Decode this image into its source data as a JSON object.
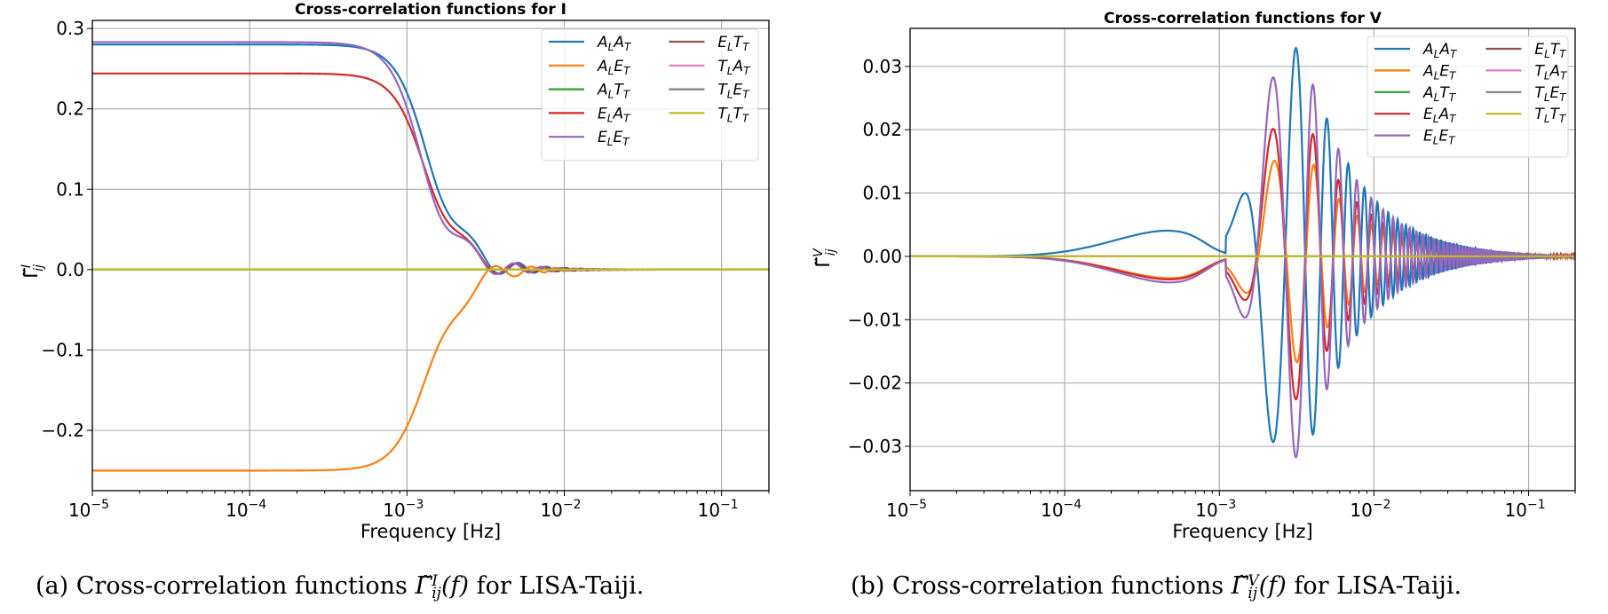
{
  "chart_data": [
    {
      "id": "panel-a",
      "type": "line",
      "title": "Cross-correlation functions for I",
      "xlabel": "Frequency [Hz]",
      "ylabel": "Γ̃ij^I",
      "ylabel_base": "Γ̃",
      "ylabel_sup": "I",
      "ylabel_sub": "ij",
      "xscale": "log",
      "xlim": [
        1e-05,
        0.2
      ],
      "ylim": [
        -0.275,
        0.31
      ],
      "xticks": [
        1e-05,
        0.0001,
        0.001,
        0.01,
        0.1
      ],
      "xtick_labels": [
        {
          "base": "10",
          "exp": "−5"
        },
        {
          "base": "10",
          "exp": "−4"
        },
        {
          "base": "10",
          "exp": "−3"
        },
        {
          "base": "10",
          "exp": "−2"
        },
        {
          "base": "10",
          "exp": "−1"
        }
      ],
      "yticks": [
        -0.2,
        -0.1,
        0.0,
        0.1,
        0.2,
        0.3
      ],
      "ytick_labels": [
        "−0.2",
        "−0.1",
        "0.0",
        "0.1",
        "0.2",
        "0.3"
      ],
      "grid": true,
      "legend_position": "top-right",
      "legend_columns": 2,
      "series": [
        {
          "name": "A_L A_T",
          "label_main": [
            "A",
            "A"
          ],
          "label_sub": [
            "L",
            "T"
          ],
          "color": "#1f77b4",
          "kind": "lowpass",
          "amp": 0.28,
          "fc": 0.00142,
          "phase": 0.0
        },
        {
          "name": "A_L E_T",
          "label_main": [
            "A",
            "E"
          ],
          "label_sub": [
            "L",
            "T"
          ],
          "color": "#ff7f0e",
          "kind": "lowpass",
          "amp": -0.25,
          "fc": 0.00142,
          "phase": 0.6
        },
        {
          "name": "A_L T_T",
          "label_main": [
            "A",
            "T"
          ],
          "label_sub": [
            "L",
            "T"
          ],
          "color": "#2ca02c",
          "kind": "zero"
        },
        {
          "name": "E_L A_T",
          "label_main": [
            "E",
            "A"
          ],
          "label_sub": [
            "L",
            "T"
          ],
          "color": "#d62728",
          "kind": "lowpass",
          "amp": 0.244,
          "fc": 0.00138,
          "phase": 0.05
        },
        {
          "name": "E_L E_T",
          "label_main": [
            "E",
            "E"
          ],
          "label_sub": [
            "L",
            "T"
          ],
          "color": "#9467bd",
          "kind": "lowpass",
          "amp": 0.283,
          "fc": 0.00128,
          "phase": -0.5
        },
        {
          "name": "E_L T_T",
          "label_main": [
            "E",
            "T"
          ],
          "label_sub": [
            "L",
            "T"
          ],
          "color": "#8c564b",
          "kind": "zero"
        },
        {
          "name": "T_L A_T",
          "label_main": [
            "T",
            "A"
          ],
          "label_sub": [
            "L",
            "T"
          ],
          "color": "#e377c2",
          "kind": "zero"
        },
        {
          "name": "T_L E_T",
          "label_main": [
            "T",
            "E"
          ],
          "label_sub": [
            "L",
            "T"
          ],
          "color": "#7f7f7f",
          "kind": "zero"
        },
        {
          "name": "T_L T_T",
          "label_main": [
            "T",
            "T"
          ],
          "label_sub": [
            "L",
            "T"
          ],
          "color": "#bcbd22",
          "kind": "zero"
        }
      ],
      "key_points": {
        "A_L A_T": {
          "plateau": 0.28,
          "first_min": -0.04,
          "first_min_f": 0.0027
        },
        "A_L E_T": {
          "plateau": -0.25,
          "first_max": 0.013,
          "first_max_f": 0.0022
        },
        "E_L A_T": {
          "plateau": 0.244,
          "first_min": -0.04,
          "first_min_f": 0.0026
        },
        "E_L E_T": {
          "plateau": 0.283,
          "first_min": -0.02,
          "first_min_f": 0.0024
        },
        "zero_series_value": 0.0
      }
    },
    {
      "id": "panel-b",
      "type": "line",
      "title": "Cross-correlation functions for V",
      "xlabel": "Frequency [Hz]",
      "ylabel": "Γ̃ij^V",
      "ylabel_base": "Γ̃",
      "ylabel_sup": "V",
      "ylabel_sub": "ij",
      "xscale": "log",
      "xlim": [
        1e-05,
        0.2
      ],
      "ylim": [
        -0.037,
        0.036
      ],
      "xticks": [
        1e-05,
        0.0001,
        0.001,
        0.01,
        0.1
      ],
      "xtick_labels": [
        {
          "base": "10",
          "exp": "−5"
        },
        {
          "base": "10",
          "exp": "−4"
        },
        {
          "base": "10",
          "exp": "−3"
        },
        {
          "base": "10",
          "exp": "−2"
        },
        {
          "base": "10",
          "exp": "−1"
        }
      ],
      "yticks": [
        -0.03,
        -0.02,
        -0.01,
        0.0,
        0.01,
        0.02,
        0.03
      ],
      "ytick_labels": [
        "−0.03",
        "−0.02",
        "−0.01",
        "0.00",
        "0.01",
        "0.02",
        "0.03"
      ],
      "grid": true,
      "legend_position": "top-right",
      "legend_columns": 2,
      "series": [
        {
          "name": "A_L A_T",
          "label_main": [
            "A",
            "A"
          ],
          "label_sub": [
            "L",
            "T"
          ],
          "color": "#1f77b4",
          "kind": "bandpass",
          "low": 0.0042,
          "low_f": 0.00052,
          "peak": -0.0335,
          "peak_f": 0.0022,
          "osc_amp": 0.0178,
          "osc_phase": 0.0
        },
        {
          "name": "A_L E_T",
          "label_main": [
            "A",
            "E"
          ],
          "label_sub": [
            "L",
            "T"
          ],
          "color": "#ff7f0e",
          "kind": "bandpass",
          "low": -0.0036,
          "low_f": 0.00055,
          "peak": 0.017,
          "peak_f": 0.00225,
          "osc_amp": 0.0095,
          "osc_phase": 3.14
        },
        {
          "name": "A_L T_T",
          "label_main": [
            "A",
            "T"
          ],
          "label_sub": [
            "L",
            "T"
          ],
          "color": "#2ca02c",
          "kind": "zero"
        },
        {
          "name": "E_L A_T",
          "label_main": [
            "E",
            "A"
          ],
          "label_sub": [
            "L",
            "T"
          ],
          "color": "#d62728",
          "kind": "bandpass",
          "low": -0.0038,
          "low_f": 0.00055,
          "peak": 0.023,
          "peak_f": 0.0022,
          "osc_amp": 0.0128,
          "osc_phase": 3.14
        },
        {
          "name": "E_L E_T",
          "label_main": [
            "E",
            "E"
          ],
          "label_sub": [
            "L",
            "T"
          ],
          "color": "#9467bd",
          "kind": "bandpass",
          "low": -0.0043,
          "low_f": 0.00055,
          "peak": 0.0323,
          "peak_f": 0.0022,
          "osc_amp": 0.0172,
          "osc_phase": 3.14
        },
        {
          "name": "E_L T_T",
          "label_main": [
            "E",
            "T"
          ],
          "label_sub": [
            "L",
            "T"
          ],
          "color": "#8c564b",
          "kind": "zero"
        },
        {
          "name": "T_L A_T",
          "label_main": [
            "T",
            "A"
          ],
          "label_sub": [
            "L",
            "T"
          ],
          "color": "#e377c2",
          "kind": "zero"
        },
        {
          "name": "T_L E_T",
          "label_main": [
            "T",
            "E"
          ],
          "label_sub": [
            "L",
            "T"
          ],
          "color": "#7f7f7f",
          "kind": "zero"
        },
        {
          "name": "T_L T_T",
          "label_main": [
            "T",
            "T"
          ],
          "label_sub": [
            "L",
            "T"
          ],
          "color": "#bcbd22",
          "kind": "zero"
        }
      ],
      "key_points": {
        "A_L A_T": {
          "local_max": 0.0042,
          "local_max_f": 0.00052,
          "min": -0.0335,
          "min_f": 0.0022,
          "next_max": 0.0178,
          "next_max_f": 0.0033
        },
        "A_L E_T": {
          "max": 0.017,
          "max_f": 0.00225,
          "next_min": -0.0095,
          "next_min_f": 0.004
        },
        "E_L A_T": {
          "max": 0.023,
          "max_f": 0.0022,
          "next_min": -0.0128,
          "next_min_f": 0.004
        },
        "E_L E_T": {
          "max": 0.0323,
          "max_f": 0.0022,
          "next_min": -0.0172,
          "next_min_f": 0.004
        },
        "zero_series_value": 0.0
      }
    }
  ],
  "captions": {
    "a": {
      "prefix": "(a) Cross-correlation functions ",
      "symbol": "Γ̃",
      "sup": "I",
      "sub": "ij",
      "arg": "(f)",
      "suffix": " for LISA-Taiji."
    },
    "b": {
      "prefix": "(b) Cross-correlation functions ",
      "symbol": "Γ̃",
      "sup": "V",
      "sub": "ij",
      "arg": "(f)",
      "suffix": " for LISA-Taiji."
    }
  }
}
